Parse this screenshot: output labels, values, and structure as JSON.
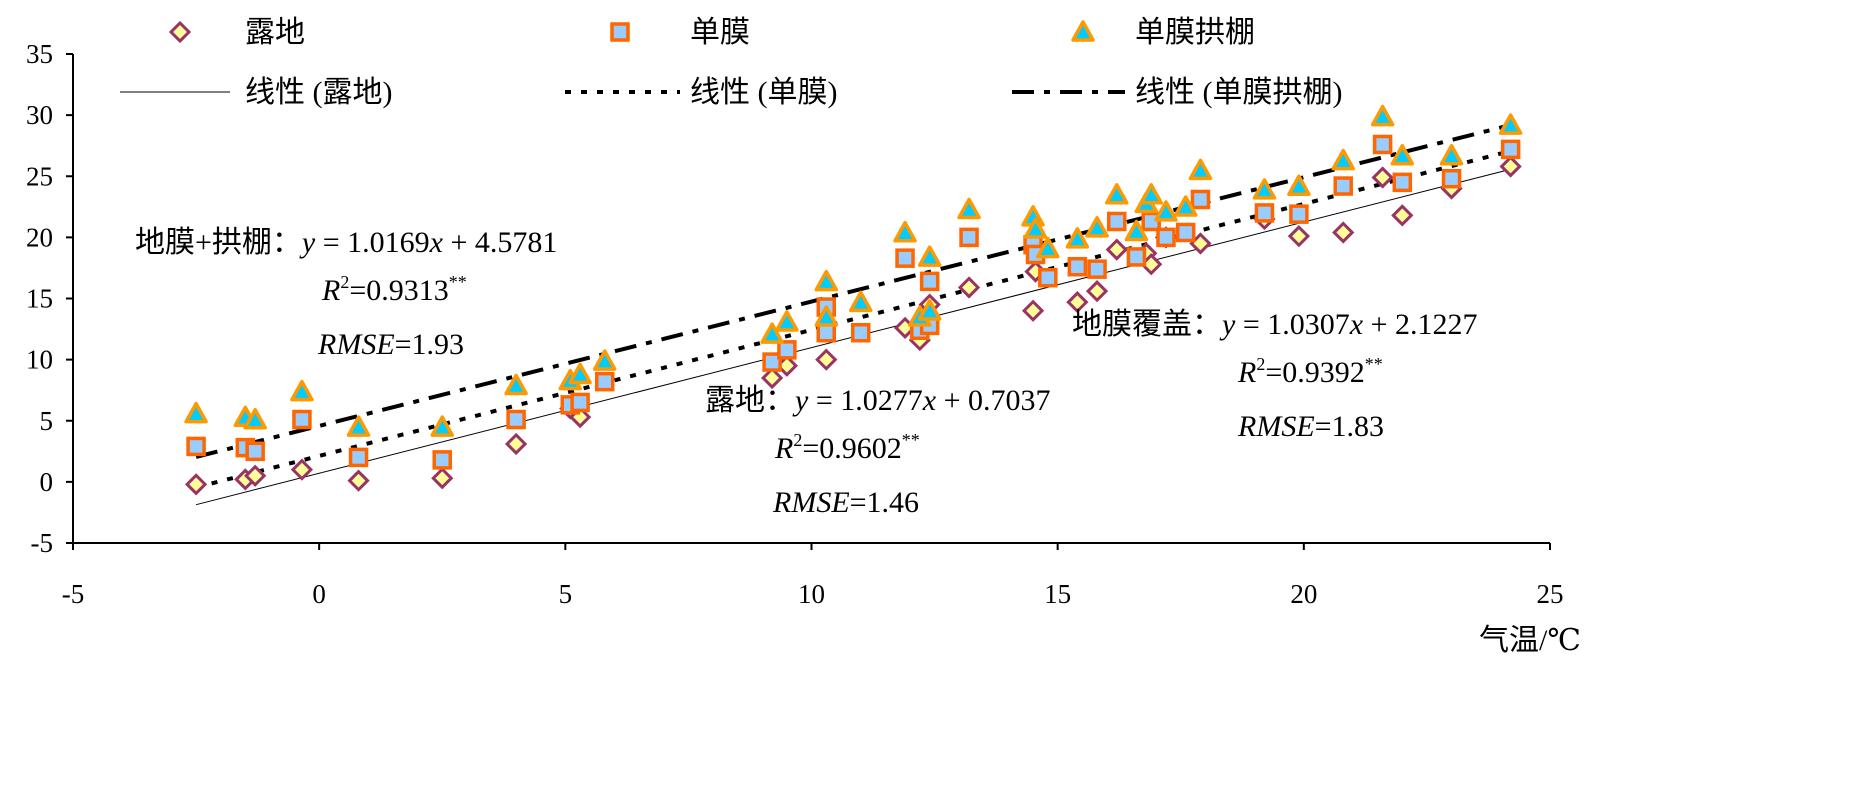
{
  "chart_data": {
    "type": "scatter",
    "title": "",
    "xlabel": "气温/℃",
    "ylabel": "",
    "xlim": [
      -5,
      25
    ],
    "ylim": [
      -5,
      35
    ],
    "xticks": [
      "-5",
      "0",
      "5",
      "10",
      "15",
      "20",
      "25"
    ],
    "yticks": [
      "-5",
      "0",
      "5",
      "10",
      "15",
      "20",
      "25",
      "30",
      "35"
    ],
    "grid": false,
    "legend_position": "top",
    "colors": {
      "diamond_fill": "#FFFF99",
      "diamond_stroke": "#993366",
      "square_fill": "#99CCFF",
      "square_stroke": "#FF6600",
      "triangle_fill": "#00CCFF",
      "triangle_stroke": "#FF9900"
    },
    "series": [
      {
        "name": "露地",
        "marker": "diamond",
        "points": [
          [
            -2.5,
            -0.2
          ],
          [
            -1.5,
            0.2
          ],
          [
            -1.3,
            0.5
          ],
          [
            -0.35,
            1.0
          ],
          [
            0.8,
            0.1
          ],
          [
            2.5,
            0.3
          ],
          [
            4.0,
            3.1
          ],
          [
            5.1,
            6.0
          ],
          [
            5.3,
            5.3
          ],
          [
            9.2,
            8.5
          ],
          [
            9.5,
            9.5
          ],
          [
            10.3,
            10.0
          ],
          [
            11.9,
            12.6
          ],
          [
            12.2,
            11.6
          ],
          [
            12.4,
            14.5
          ],
          [
            13.2,
            15.9
          ],
          [
            14.5,
            14.0
          ],
          [
            14.55,
            17.2
          ],
          [
            15.4,
            14.7
          ],
          [
            15.8,
            15.6
          ],
          [
            16.2,
            19.0
          ],
          [
            16.8,
            18.7
          ],
          [
            16.9,
            17.8
          ],
          [
            17.2,
            20.0
          ],
          [
            17.9,
            19.5
          ],
          [
            19.2,
            21.5
          ],
          [
            19.9,
            20.1
          ],
          [
            20.8,
            20.4
          ],
          [
            21.6,
            24.9
          ],
          [
            22.0,
            21.8
          ],
          [
            23.0,
            24.0
          ],
          [
            24.2,
            25.8
          ]
        ]
      },
      {
        "name": "单膜",
        "marker": "square",
        "points": [
          [
            -2.5,
            2.9
          ],
          [
            -1.5,
            2.8
          ],
          [
            -1.3,
            2.5
          ],
          [
            -0.35,
            5.1
          ],
          [
            0.8,
            2.0
          ],
          [
            2.5,
            1.8
          ],
          [
            4.0,
            5.1
          ],
          [
            5.1,
            6.3
          ],
          [
            5.3,
            6.5
          ],
          [
            5.8,
            8.2
          ],
          [
            9.2,
            9.8
          ],
          [
            9.5,
            10.8
          ],
          [
            10.3,
            12.2
          ],
          [
            10.3,
            14.3
          ],
          [
            11.0,
            12.2
          ],
          [
            11.9,
            18.3
          ],
          [
            12.2,
            12.4
          ],
          [
            12.4,
            12.8
          ],
          [
            12.4,
            16.4
          ],
          [
            13.2,
            20.0
          ],
          [
            14.5,
            19.4
          ],
          [
            14.55,
            18.6
          ],
          [
            14.8,
            16.7
          ],
          [
            15.4,
            17.6
          ],
          [
            15.8,
            17.4
          ],
          [
            16.2,
            21.3
          ],
          [
            16.6,
            18.4
          ],
          [
            16.9,
            21.3
          ],
          [
            17.2,
            20.0
          ],
          [
            17.6,
            20.4
          ],
          [
            17.9,
            23.1
          ],
          [
            19.2,
            22.0
          ],
          [
            19.9,
            21.9
          ],
          [
            20.8,
            24.2
          ],
          [
            21.6,
            27.6
          ],
          [
            22.0,
            24.5
          ],
          [
            23.0,
            24.8
          ],
          [
            24.2,
            27.2
          ]
        ]
      },
      {
        "name": "单膜拱棚",
        "marker": "triangle",
        "points": [
          [
            -2.5,
            5.5
          ],
          [
            -1.5,
            5.2
          ],
          [
            -1.3,
            5.0
          ],
          [
            -0.35,
            7.3
          ],
          [
            0.8,
            4.4
          ],
          [
            2.5,
            4.4
          ],
          [
            4.0,
            7.8
          ],
          [
            5.1,
            8.2
          ],
          [
            5.3,
            8.7
          ],
          [
            5.8,
            9.8
          ],
          [
            9.2,
            12.0
          ],
          [
            9.5,
            13.0
          ],
          [
            10.3,
            13.4
          ],
          [
            10.3,
            16.3
          ],
          [
            11.0,
            14.6
          ],
          [
            11.9,
            20.3
          ],
          [
            12.2,
            13.4
          ],
          [
            12.4,
            13.9
          ],
          [
            12.4,
            18.3
          ],
          [
            13.2,
            22.2
          ],
          [
            14.5,
            21.6
          ],
          [
            14.55,
            20.6
          ],
          [
            14.8,
            19.0
          ],
          [
            15.4,
            19.8
          ],
          [
            15.8,
            20.7
          ],
          [
            16.2,
            23.4
          ],
          [
            16.6,
            20.4
          ],
          [
            16.8,
            22.7
          ],
          [
            16.9,
            23.4
          ],
          [
            17.2,
            22.0
          ],
          [
            17.6,
            22.4
          ],
          [
            17.9,
            25.4
          ],
          [
            19.2,
            23.8
          ],
          [
            19.9,
            24.1
          ],
          [
            20.8,
            26.2
          ],
          [
            21.6,
            29.8
          ],
          [
            22.0,
            26.6
          ],
          [
            23.0,
            26.6
          ],
          [
            24.2,
            29.1
          ]
        ]
      }
    ],
    "trendlines": [
      {
        "name": "线性 (露地)",
        "style": "solid",
        "slope": 1.0277,
        "intercept": 0.7037,
        "x_range": [
          -2.5,
          24.2
        ]
      },
      {
        "name": "线性 (单膜)",
        "style": "dotted",
        "slope": 1.0307,
        "intercept": 2.1227,
        "x_range": [
          -2.5,
          24.2
        ]
      },
      {
        "name": "线性 (单膜拱棚)",
        "style": "dashdot",
        "slope": 1.0169,
        "intercept": 4.5781,
        "x_range": [
          -2.5,
          24.2
        ]
      }
    ],
    "annotations": [
      {
        "prefix": "地膜+拱棚：",
        "eq_y": "y",
        "eq_mid": " = 1.0169",
        "eq_x": "x",
        "eq_end": " + 4.5781",
        "r2_r": "R",
        "r2_sup": "2",
        "r2_val": "=0.9313",
        "r2_star": "**",
        "rmse_label": "RMSE",
        "rmse_val": "=1.93"
      },
      {
        "prefix": "露地：",
        "eq_y": "y",
        "eq_mid": " = 1.0277",
        "eq_x": "x",
        "eq_end": " + 0.7037",
        "r2_r": "R",
        "r2_sup": "2",
        "r2_val": "=0.9602",
        "r2_star": "**",
        "rmse_label": "RMSE",
        "rmse_val": "=1.46"
      },
      {
        "prefix": "地膜覆盖：",
        "eq_y": "y",
        "eq_mid": " = 1.0307",
        "eq_x": "x",
        "eq_end": " + 2.1227",
        "r2_r": "R",
        "r2_sup": "2",
        "r2_val": "=0.9392",
        "r2_star": "**",
        "rmse_label": "RMSE",
        "rmse_val": "=1.83"
      }
    ]
  }
}
